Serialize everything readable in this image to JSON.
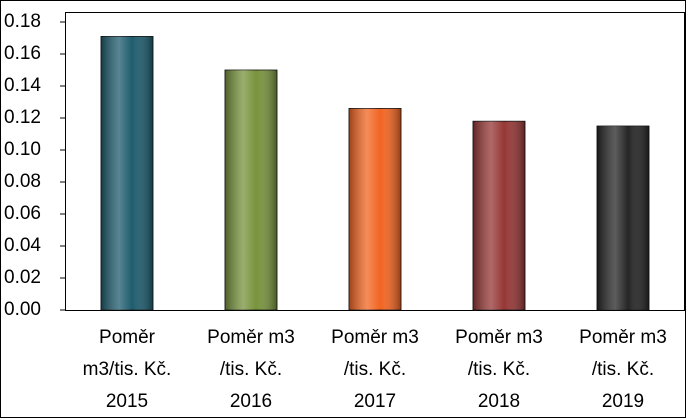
{
  "chart_data": {
    "type": "bar",
    "categories": [
      [
        "Poměr",
        "m3/tis. Kč.",
        "2015"
      ],
      [
        "Poměr m3",
        "/tis. Kč.",
        "2016"
      ],
      [
        "Poměr m3",
        "/tis. Kč.",
        "2017"
      ],
      [
        "Poměr m3",
        "/tis. Kč.",
        "2018"
      ],
      [
        "Poměr m3",
        "/tis. Kč.",
        "2019"
      ]
    ],
    "values": [
      0.171,
      0.15,
      0.126,
      0.118,
      0.115
    ],
    "colors": [
      "#1f5c6e",
      "#77933c",
      "#f26522",
      "#953735",
      "#262626"
    ],
    "ylim": [
      0,
      0.18
    ],
    "yticks": [
      {
        "value": 0,
        "label": "0.00"
      },
      0.02,
      0.04,
      0.06,
      0.08,
      {
        "value": 0.1,
        "label": "0.10"
      },
      0.12,
      0.14,
      0.16,
      0.18
    ],
    "grid": false
  }
}
